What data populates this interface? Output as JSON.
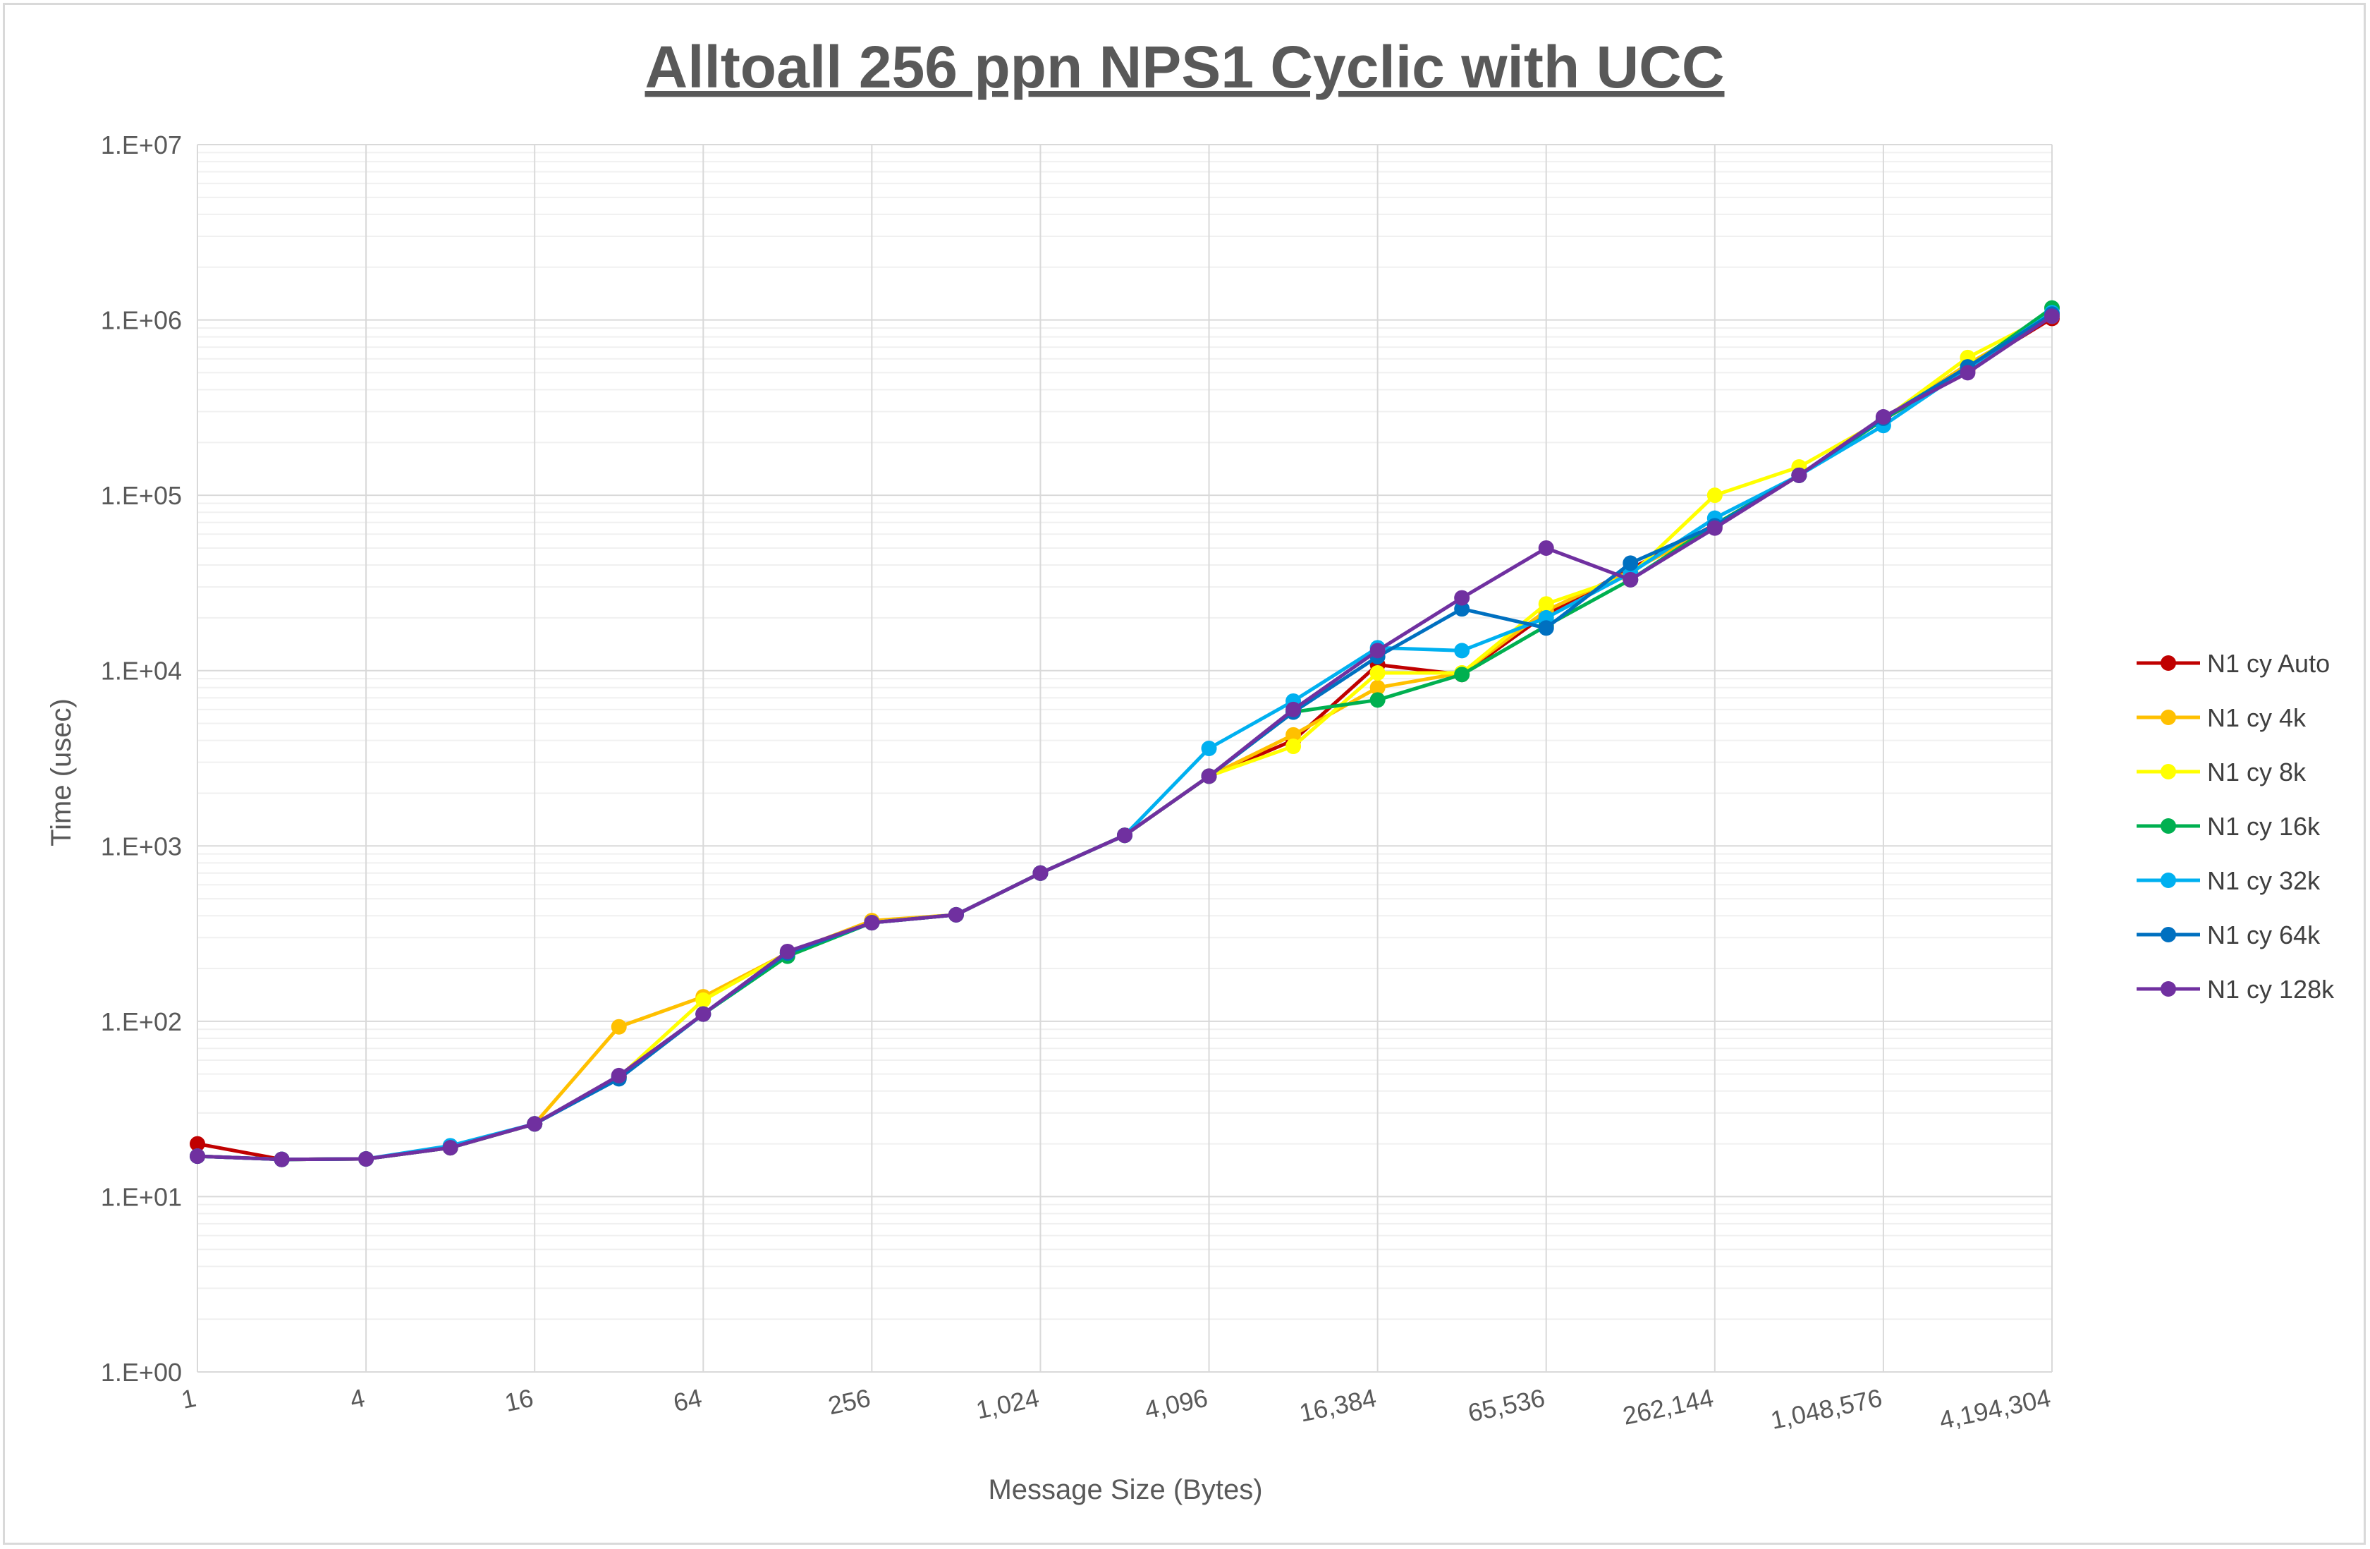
{
  "chart_data": {
    "type": "line",
    "title": "Alltoall 256 ppn NPS1 Cyclic with UCC",
    "xlabel": "Message Size (Bytes)",
    "ylabel": "Time (usec)",
    "x_scale": "log2",
    "y_scale": "log10",
    "ylim": [
      1,
      10000000
    ],
    "x_tick_labels": [
      "1",
      "4",
      "16",
      "64",
      "256",
      "1,024",
      "4,096",
      "16,384",
      "65,536",
      "262,144",
      "1,048,576",
      "4,194,304"
    ],
    "y_tick_labels": [
      "1.E+00",
      "1.E+01",
      "1.E+02",
      "1.E+03",
      "1.E+04",
      "1.E+05",
      "1.E+06",
      "1.E+07"
    ],
    "y_tick_values": [
      1,
      10,
      100,
      1000,
      10000,
      100000,
      1000000,
      10000000
    ],
    "grid": true,
    "legend_position": "right",
    "x": [
      1,
      2,
      4,
      8,
      16,
      32,
      64,
      128,
      256,
      512,
      1024,
      2048,
      4096,
      8192,
      16384,
      32768,
      65536,
      131072,
      262144,
      524288,
      1048576,
      2097152,
      4194304
    ],
    "series": [
      {
        "name": "N1 cy Auto",
        "color": "#c00000",
        "values": [
          20,
          16.3,
          16.4,
          19,
          26,
          48,
          110,
          245,
          365,
          405,
          700,
          1150,
          2500,
          4000,
          10800,
          9500,
          21000,
          38000,
          68000,
          130000,
          270000,
          520000,
          1020000
        ]
      },
      {
        "name": "N1 cy 4k",
        "color": "#ffc000",
        "values": [
          17,
          16.3,
          16.4,
          19,
          26,
          93,
          138,
          245,
          375,
          405,
          700,
          1150,
          2500,
          4300,
          8000,
          9700,
          22000,
          37000,
          66000,
          130000,
          270000,
          560000,
          1050000
        ]
      },
      {
        "name": "N1 cy 8k",
        "color": "#ffff00",
        "values": [
          17,
          16.3,
          16.4,
          19,
          26,
          48,
          132,
          245,
          365,
          405,
          700,
          1150,
          2500,
          3700,
          9700,
          9700,
          24000,
          35000,
          100000,
          145000,
          270000,
          610000,
          1080000
        ]
      },
      {
        "name": "N1 cy 16k",
        "color": "#00b050",
        "values": [
          17,
          16.3,
          16.4,
          19,
          26,
          48,
          110,
          235,
          365,
          405,
          700,
          1150,
          2500,
          5800,
          6800,
          9500,
          18000,
          33000,
          68000,
          130000,
          270000,
          530000,
          1170000
        ]
      },
      {
        "name": "N1 cy 32k",
        "color": "#00b0f0",
        "values": [
          17,
          16.3,
          16.4,
          19.5,
          26,
          48,
          110,
          245,
          365,
          405,
          700,
          1150,
          3600,
          6700,
          13500,
          13000,
          20000,
          36000,
          74000,
          130000,
          250000,
          530000,
          1100000
        ]
      },
      {
        "name": "N1 cy 64k",
        "color": "#0070c0",
        "values": [
          17,
          16.3,
          16.4,
          19,
          26,
          47,
          110,
          245,
          365,
          405,
          700,
          1150,
          2500,
          5800,
          12000,
          22500,
          17500,
          41000,
          67000,
          130000,
          275000,
          540000,
          1080000
        ]
      },
      {
        "name": "N1 cy 128k",
        "color": "#7030a0",
        "values": [
          17,
          16.3,
          16.4,
          19,
          26,
          49,
          110,
          250,
          365,
          405,
          700,
          1150,
          2500,
          6000,
          13000,
          26000,
          50000,
          33000,
          65000,
          130000,
          280000,
          500000,
          1050000
        ]
      }
    ]
  }
}
